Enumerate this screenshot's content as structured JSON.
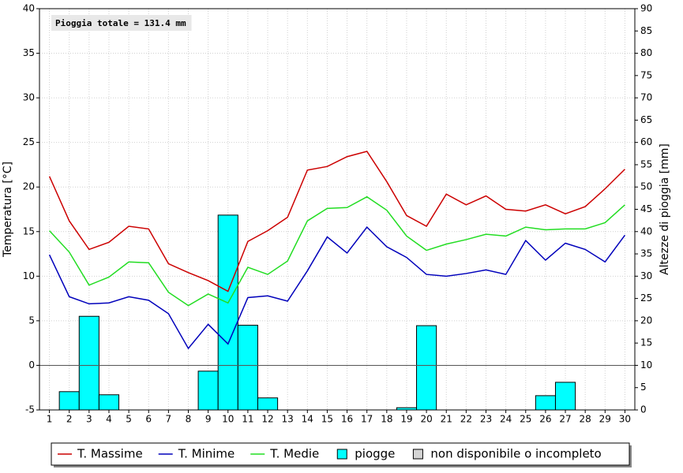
{
  "chart_data": {
    "type": "line",
    "annotation": "Pioggia totale = 131.4 mm",
    "ylabel": "Temperatura [°C]",
    "y2label": "Altezze di pioggia [mm]",
    "x": [
      1,
      2,
      3,
      4,
      5,
      6,
      7,
      8,
      9,
      10,
      11,
      12,
      13,
      14,
      15,
      16,
      17,
      18,
      19,
      20,
      21,
      22,
      23,
      24,
      25,
      26,
      27,
      28,
      29,
      30
    ],
    "xlim": [
      0.5,
      30.5
    ],
    "xticks": [
      1,
      2,
      3,
      4,
      5,
      6,
      7,
      8,
      9,
      10,
      11,
      12,
      13,
      14,
      15,
      16,
      17,
      18,
      19,
      20,
      21,
      22,
      23,
      24,
      25,
      26,
      27,
      28,
      29,
      30
    ],
    "ylim": [
      -5,
      40
    ],
    "yticks": [
      -5,
      0,
      5,
      10,
      15,
      20,
      25,
      30,
      35,
      40
    ],
    "y2lim": [
      0,
      90
    ],
    "y2ticks": [
      0,
      5,
      10,
      15,
      20,
      25,
      30,
      35,
      40,
      45,
      50,
      55,
      60,
      65,
      70,
      75,
      80,
      85,
      90
    ],
    "grid": true,
    "legend": "bottom",
    "series": [
      {
        "name": "T. Massime",
        "color": "#cc0000",
        "type": "line",
        "values": [
          21.2,
          16.2,
          13.0,
          13.8,
          15.6,
          15.3,
          11.4,
          10.4,
          9.5,
          8.3,
          13.9,
          15.1,
          16.6,
          21.9,
          22.3,
          23.4,
          24.0,
          20.6,
          16.8,
          15.6,
          19.2,
          18.0,
          19.0,
          17.5,
          17.3,
          18.0,
          17.0,
          17.8,
          19.8,
          22.0
        ]
      },
      {
        "name": "T. Minime",
        "color": "#0000bb",
        "type": "line",
        "values": [
          12.4,
          7.7,
          6.9,
          7.0,
          7.7,
          7.3,
          5.8,
          1.9,
          4.6,
          2.4,
          7.6,
          7.8,
          7.2,
          10.6,
          14.4,
          12.6,
          15.5,
          13.3,
          12.1,
          10.2,
          10.0,
          10.3,
          10.7,
          10.2,
          14.0,
          11.8,
          13.7,
          13.0,
          11.6,
          14.6
        ]
      },
      {
        "name": "T. Medie",
        "color": "#22dd22",
        "type": "line",
        "values": [
          15.1,
          12.7,
          9.0,
          9.9,
          11.6,
          11.5,
          8.2,
          6.7,
          8.0,
          7.0,
          11.0,
          10.2,
          11.7,
          16.2,
          17.6,
          17.7,
          18.9,
          17.4,
          14.5,
          12.9,
          13.6,
          14.1,
          14.7,
          14.5,
          15.5,
          15.2,
          15.3,
          15.3,
          16.0,
          18.0
        ]
      },
      {
        "name": "piogge",
        "color": "#00ffff",
        "type": "bar",
        "axis": "y2",
        "values": [
          0,
          4.1,
          21.0,
          3.4,
          0,
          0,
          0,
          0,
          8.7,
          43.7,
          19.0,
          2.7,
          0,
          0,
          0,
          0,
          0,
          0,
          0.5,
          18.9,
          0,
          0,
          0,
          0,
          0,
          3.2,
          6.2,
          0,
          0,
          0
        ]
      }
    ],
    "unavailable_legend": {
      "label": "non disponibile o incompleto",
      "color": "#d4d4d4"
    }
  }
}
